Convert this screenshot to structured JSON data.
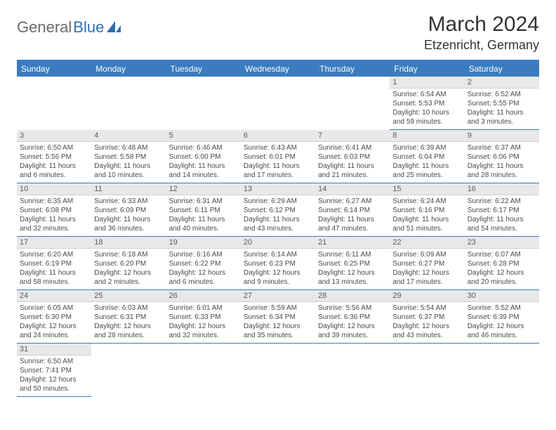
{
  "logo": {
    "text_gray": "General",
    "text_blue": "Blue"
  },
  "title": {
    "month_year": "March 2024",
    "location": "Etzenricht, Germany"
  },
  "colors": {
    "header_bg": "#3a7cbf",
    "header_text": "#ffffff",
    "day_header_bg": "#e8e8e8",
    "day_header_text": "#5a5a5a",
    "body_text": "#4a4a4a",
    "border": "#3a7cbf"
  },
  "weekdays": [
    "Sunday",
    "Monday",
    "Tuesday",
    "Wednesday",
    "Thursday",
    "Friday",
    "Saturday"
  ],
  "weeks": [
    [
      null,
      null,
      null,
      null,
      null,
      {
        "n": "1",
        "sunrise": "Sunrise: 6:54 AM",
        "sunset": "Sunset: 5:53 PM",
        "daylight": "Daylight: 10 hours and 59 minutes."
      },
      {
        "n": "2",
        "sunrise": "Sunrise: 6:52 AM",
        "sunset": "Sunset: 5:55 PM",
        "daylight": "Daylight: 11 hours and 3 minutes."
      }
    ],
    [
      {
        "n": "3",
        "sunrise": "Sunrise: 6:50 AM",
        "sunset": "Sunset: 5:56 PM",
        "daylight": "Daylight: 11 hours and 6 minutes."
      },
      {
        "n": "4",
        "sunrise": "Sunrise: 6:48 AM",
        "sunset": "Sunset: 5:58 PM",
        "daylight": "Daylight: 11 hours and 10 minutes."
      },
      {
        "n": "5",
        "sunrise": "Sunrise: 6:46 AM",
        "sunset": "Sunset: 6:00 PM",
        "daylight": "Daylight: 11 hours and 14 minutes."
      },
      {
        "n": "6",
        "sunrise": "Sunrise: 6:43 AM",
        "sunset": "Sunset: 6:01 PM",
        "daylight": "Daylight: 11 hours and 17 minutes."
      },
      {
        "n": "7",
        "sunrise": "Sunrise: 6:41 AM",
        "sunset": "Sunset: 6:03 PM",
        "daylight": "Daylight: 11 hours and 21 minutes."
      },
      {
        "n": "8",
        "sunrise": "Sunrise: 6:39 AM",
        "sunset": "Sunset: 6:04 PM",
        "daylight": "Daylight: 11 hours and 25 minutes."
      },
      {
        "n": "9",
        "sunrise": "Sunrise: 6:37 AM",
        "sunset": "Sunset: 6:06 PM",
        "daylight": "Daylight: 11 hours and 28 minutes."
      }
    ],
    [
      {
        "n": "10",
        "sunrise": "Sunrise: 6:35 AM",
        "sunset": "Sunset: 6:08 PM",
        "daylight": "Daylight: 11 hours and 32 minutes."
      },
      {
        "n": "11",
        "sunrise": "Sunrise: 6:33 AM",
        "sunset": "Sunset: 6:09 PM",
        "daylight": "Daylight: 11 hours and 36 minutes."
      },
      {
        "n": "12",
        "sunrise": "Sunrise: 6:31 AM",
        "sunset": "Sunset: 6:11 PM",
        "daylight": "Daylight: 11 hours and 40 minutes."
      },
      {
        "n": "13",
        "sunrise": "Sunrise: 6:29 AM",
        "sunset": "Sunset: 6:12 PM",
        "daylight": "Daylight: 11 hours and 43 minutes."
      },
      {
        "n": "14",
        "sunrise": "Sunrise: 6:27 AM",
        "sunset": "Sunset: 6:14 PM",
        "daylight": "Daylight: 11 hours and 47 minutes."
      },
      {
        "n": "15",
        "sunrise": "Sunrise: 6:24 AM",
        "sunset": "Sunset: 6:16 PM",
        "daylight": "Daylight: 11 hours and 51 minutes."
      },
      {
        "n": "16",
        "sunrise": "Sunrise: 6:22 AM",
        "sunset": "Sunset: 6:17 PM",
        "daylight": "Daylight: 11 hours and 54 minutes."
      }
    ],
    [
      {
        "n": "17",
        "sunrise": "Sunrise: 6:20 AM",
        "sunset": "Sunset: 6:19 PM",
        "daylight": "Daylight: 11 hours and 58 minutes."
      },
      {
        "n": "18",
        "sunrise": "Sunrise: 6:18 AM",
        "sunset": "Sunset: 6:20 PM",
        "daylight": "Daylight: 12 hours and 2 minutes."
      },
      {
        "n": "19",
        "sunrise": "Sunrise: 6:16 AM",
        "sunset": "Sunset: 6:22 PM",
        "daylight": "Daylight: 12 hours and 6 minutes."
      },
      {
        "n": "20",
        "sunrise": "Sunrise: 6:14 AM",
        "sunset": "Sunset: 6:23 PM",
        "daylight": "Daylight: 12 hours and 9 minutes."
      },
      {
        "n": "21",
        "sunrise": "Sunrise: 6:11 AM",
        "sunset": "Sunset: 6:25 PM",
        "daylight": "Daylight: 12 hours and 13 minutes."
      },
      {
        "n": "22",
        "sunrise": "Sunrise: 6:09 AM",
        "sunset": "Sunset: 6:27 PM",
        "daylight": "Daylight: 12 hours and 17 minutes."
      },
      {
        "n": "23",
        "sunrise": "Sunrise: 6:07 AM",
        "sunset": "Sunset: 6:28 PM",
        "daylight": "Daylight: 12 hours and 20 minutes."
      }
    ],
    [
      {
        "n": "24",
        "sunrise": "Sunrise: 6:05 AM",
        "sunset": "Sunset: 6:30 PM",
        "daylight": "Daylight: 12 hours and 24 minutes."
      },
      {
        "n": "25",
        "sunrise": "Sunrise: 6:03 AM",
        "sunset": "Sunset: 6:31 PM",
        "daylight": "Daylight: 12 hours and 28 minutes."
      },
      {
        "n": "26",
        "sunrise": "Sunrise: 6:01 AM",
        "sunset": "Sunset: 6:33 PM",
        "daylight": "Daylight: 12 hours and 32 minutes."
      },
      {
        "n": "27",
        "sunrise": "Sunrise: 5:59 AM",
        "sunset": "Sunset: 6:34 PM",
        "daylight": "Daylight: 12 hours and 35 minutes."
      },
      {
        "n": "28",
        "sunrise": "Sunrise: 5:56 AM",
        "sunset": "Sunset: 6:36 PM",
        "daylight": "Daylight: 12 hours and 39 minutes."
      },
      {
        "n": "29",
        "sunrise": "Sunrise: 5:54 AM",
        "sunset": "Sunset: 6:37 PM",
        "daylight": "Daylight: 12 hours and 43 minutes."
      },
      {
        "n": "30",
        "sunrise": "Sunrise: 5:52 AM",
        "sunset": "Sunset: 6:39 PM",
        "daylight": "Daylight: 12 hours and 46 minutes."
      }
    ],
    [
      {
        "n": "31",
        "sunrise": "Sunrise: 6:50 AM",
        "sunset": "Sunset: 7:41 PM",
        "daylight": "Daylight: 12 hours and 50 minutes."
      },
      null,
      null,
      null,
      null,
      null,
      null
    ]
  ]
}
